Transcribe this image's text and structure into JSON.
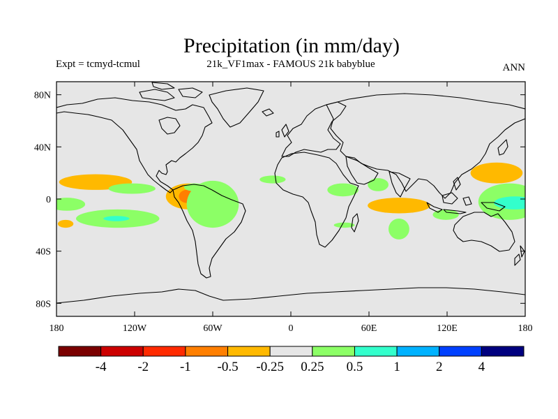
{
  "chart_data": {
    "type": "heatmap",
    "title": "Precipitation (in mm/day)",
    "subtitle_left": "Expt = tcmyd-tcmul",
    "subtitle_center": "21k_VF1max - FAMOUS 21k babyblue",
    "subtitle_right": "ANN",
    "lon_range": [
      -180,
      180
    ],
    "lat_range": [
      -90,
      90
    ],
    "x_ticks": [
      {
        "value": -180,
        "label": "180"
      },
      {
        "value": -120,
        "label": "120W"
      },
      {
        "value": -60,
        "label": "60W"
      },
      {
        "value": 0,
        "label": "0"
      },
      {
        "value": 60,
        "label": "60E"
      },
      {
        "value": 120,
        "label": "120E"
      },
      {
        "value": 180,
        "label": "180"
      }
    ],
    "y_ticks": [
      {
        "value": 80,
        "label": "80N"
      },
      {
        "value": 40,
        "label": "40N"
      },
      {
        "value": 0,
        "label": "0"
      },
      {
        "value": -40,
        "label": "40S"
      },
      {
        "value": -80,
        "label": "80S"
      }
    ],
    "colorbar": {
      "levels": [
        "-4",
        "-2",
        "-1",
        "-0.5",
        "-0.25",
        "0.25",
        "0.5",
        "1",
        "2",
        "4"
      ],
      "colors": [
        "#7a0000",
        "#cc0000",
        "#ff2a00",
        "#ff7f00",
        "#ffb900",
        "#e6e6e6",
        "#8cff66",
        "#33ffcc",
        "#00b2ff",
        "#0040ff",
        "#00007f"
      ]
    },
    "anomaly_regions": [
      {
        "name": "n-central-pacific-dry",
        "level": "-0.5 to -0.25",
        "center": [
          -150,
          13
        ],
        "span": [
          28,
          6
        ]
      },
      {
        "name": "central-pacific-wet",
        "level": "0.25 to 0.5",
        "center": [
          -122,
          8
        ],
        "span": [
          18,
          4
        ]
      },
      {
        "name": "w-pacific-eq-wet",
        "level": "0.25 to 0.5",
        "center": [
          -172,
          -4
        ],
        "span": [
          14,
          5
        ]
      },
      {
        "name": "s-pacific-wet",
        "level": "0.25 to 0.5",
        "center": [
          -133,
          -15
        ],
        "span": [
          32,
          7
        ]
      },
      {
        "name": "s-pacific-wet-core",
        "level": "0.5 to 1",
        "center": [
          -134,
          -15
        ],
        "span": [
          10,
          2
        ]
      },
      {
        "name": "se-pacific-dry",
        "level": "-0.5 to -0.25",
        "center": [
          -173,
          -19
        ],
        "span": [
          6,
          3
        ]
      },
      {
        "name": "colombia-dry",
        "level": "-0.5 to -0.25",
        "center": [
          -78,
          2
        ],
        "span": [
          18,
          10
        ]
      },
      {
        "name": "colombia-dry-core",
        "level": "-1 to -0.5",
        "center": [
          -80,
          2
        ],
        "span": [
          6,
          5
        ]
      },
      {
        "name": "colombia-wet",
        "level": "0.25 to 0.5",
        "center": [
          -74,
          9
        ],
        "span": [
          8,
          3
        ]
      },
      {
        "name": "amazon-wet",
        "level": "0.25 to 0.5",
        "center": [
          -60,
          -4
        ],
        "span": [
          20,
          18
        ]
      },
      {
        "name": "n-atlantic-trop-wet",
        "level": "0.25 to 0.5",
        "center": [
          -14,
          15
        ],
        "span": [
          10,
          3
        ]
      },
      {
        "name": "e-africa-wet",
        "level": "0.25 to 0.5",
        "center": [
          40,
          7
        ],
        "span": [
          12,
          5
        ]
      },
      {
        "name": "arabian-sea-wet",
        "level": "0.25 to 0.5",
        "center": [
          67,
          11
        ],
        "span": [
          8,
          5
        ]
      },
      {
        "name": "indian-ocean-dry",
        "level": "-0.5 to -0.25",
        "center": [
          83,
          -5
        ],
        "span": [
          24,
          6
        ]
      },
      {
        "name": "madagascar-wet",
        "level": "0.25 to 0.5",
        "center": [
          83,
          -23
        ],
        "span": [
          8,
          8
        ]
      },
      {
        "name": "s-indian-wet",
        "level": "0.25 to 0.5",
        "center": [
          41,
          -20
        ],
        "span": [
          8,
          2
        ]
      },
      {
        "name": "w-pacific-n-dry",
        "level": "-0.5 to -0.25",
        "center": [
          158,
          20
        ],
        "span": [
          20,
          8
        ]
      },
      {
        "name": "w-pacific-eq-wet",
        "level": "0.25 to 0.5",
        "center": [
          168,
          -2
        ],
        "span": [
          24,
          14
        ]
      },
      {
        "name": "w-pacific-eq-wet-core",
        "level": "0.5 to 1",
        "center": [
          172,
          -3
        ],
        "span": [
          16,
          5
        ]
      },
      {
        "name": "maritime-wet",
        "level": "0.25 to 0.5",
        "center": [
          119,
          -12
        ],
        "span": [
          10,
          4
        ]
      }
    ]
  }
}
